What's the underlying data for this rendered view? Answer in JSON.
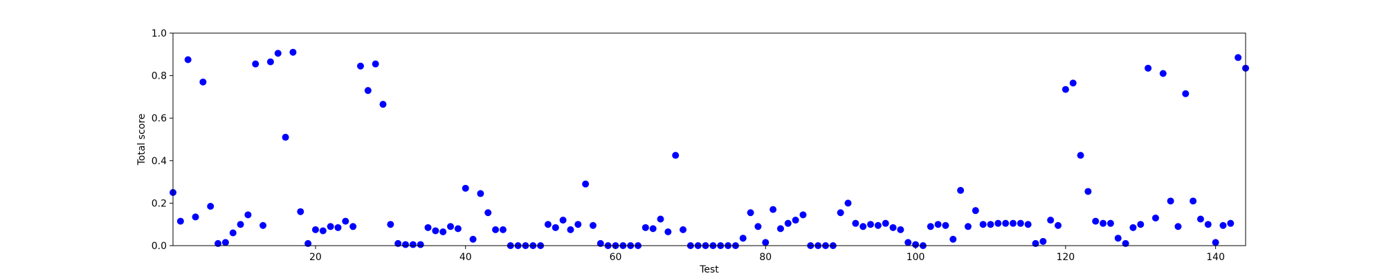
{
  "chart_data": {
    "type": "scatter",
    "title": "",
    "xlabel": "Test",
    "ylabel": "Total score",
    "xlim": [
      1,
      144
    ],
    "ylim": [
      0,
      1
    ],
    "xticks": [
      20,
      40,
      60,
      80,
      100,
      120,
      140
    ],
    "yticks": [
      "0.0",
      "0.2",
      "0.4",
      "0.6",
      "0.8",
      "1.0"
    ],
    "grid": false,
    "legend": "none",
    "marker_color": "#0000ff",
    "series": [
      {
        "x": [
          1,
          2,
          3,
          4,
          5,
          6,
          7,
          8,
          9,
          10,
          11,
          12,
          13,
          14,
          15,
          16,
          17,
          18,
          19,
          20,
          21,
          22,
          23,
          24,
          25,
          26,
          27,
          28,
          29,
          30,
          31,
          32,
          33,
          34,
          35,
          36,
          37,
          38,
          39,
          40,
          41,
          42,
          43,
          44,
          45,
          46,
          47,
          48,
          49,
          50,
          51,
          52,
          53,
          54,
          55,
          56,
          57,
          58,
          59,
          60,
          61,
          62,
          63,
          64,
          65,
          66,
          67,
          68,
          69,
          70,
          71,
          72,
          73,
          74,
          75,
          76,
          77,
          78,
          79,
          80,
          81,
          82,
          83,
          84,
          85,
          86,
          87,
          88,
          89,
          90,
          91,
          92,
          93,
          94,
          95,
          96,
          97,
          98,
          99,
          100,
          101,
          102,
          103,
          104,
          105,
          106,
          107,
          108,
          109,
          110,
          111,
          112,
          113,
          114,
          115,
          116,
          117,
          118,
          119,
          120,
          121,
          122,
          123,
          124,
          125,
          126,
          127,
          128,
          129,
          130,
          131,
          132,
          133,
          134,
          135,
          136,
          137,
          138,
          139,
          140,
          141,
          142,
          143,
          144
        ],
        "y": [
          0.25,
          0.115,
          0.875,
          0.135,
          0.77,
          0.185,
          0.01,
          0.015,
          0.06,
          0.1,
          0.145,
          0.855,
          0.095,
          0.865,
          0.905,
          0.51,
          0.91,
          0.16,
          0.01,
          0.075,
          0.07,
          0.09,
          0.085,
          0.115,
          0.09,
          0.845,
          0.73,
          0.855,
          0.665,
          0.1,
          0.01,
          0.005,
          0.005,
          0.005,
          0.085,
          0.07,
          0.065,
          0.09,
          0.08,
          0.27,
          0.03,
          0.245,
          0.155,
          0.075,
          0.075,
          0.0,
          0.0,
          0.0,
          0.0,
          0.0,
          0.1,
          0.085,
          0.12,
          0.075,
          0.1,
          0.29,
          0.095,
          0.01,
          0.0,
          0.0,
          0.0,
          0.0,
          0.0,
          0.085,
          0.08,
          0.125,
          0.065,
          0.425,
          0.075,
          0.0,
          0.0,
          0.0,
          0.0,
          0.0,
          0.0,
          0.0,
          0.035,
          0.155,
          0.09,
          0.015,
          0.17,
          0.08,
          0.105,
          0.12,
          0.145,
          0.0,
          0.0,
          0.0,
          0.0,
          0.155,
          0.2,
          0.105,
          0.09,
          0.1,
          0.095,
          0.105,
          0.085,
          0.075,
          0.015,
          0.005,
          0.0,
          0.09,
          0.1,
          0.095,
          0.03,
          0.26,
          0.09,
          0.165,
          0.1,
          0.1,
          0.105,
          0.105,
          0.105,
          0.105,
          0.1,
          0.01,
          0.02,
          0.12,
          0.095,
          0.735,
          0.765,
          0.425,
          0.255,
          0.115,
          0.105,
          0.105,
          0.035,
          0.01,
          0.085,
          0.1,
          0.835,
          0.13,
          0.81,
          0.21,
          0.09,
          0.715,
          0.21,
          0.125,
          0.1,
          0.015,
          0.095,
          0.105,
          0.885,
          0.835
        ]
      }
    ]
  }
}
